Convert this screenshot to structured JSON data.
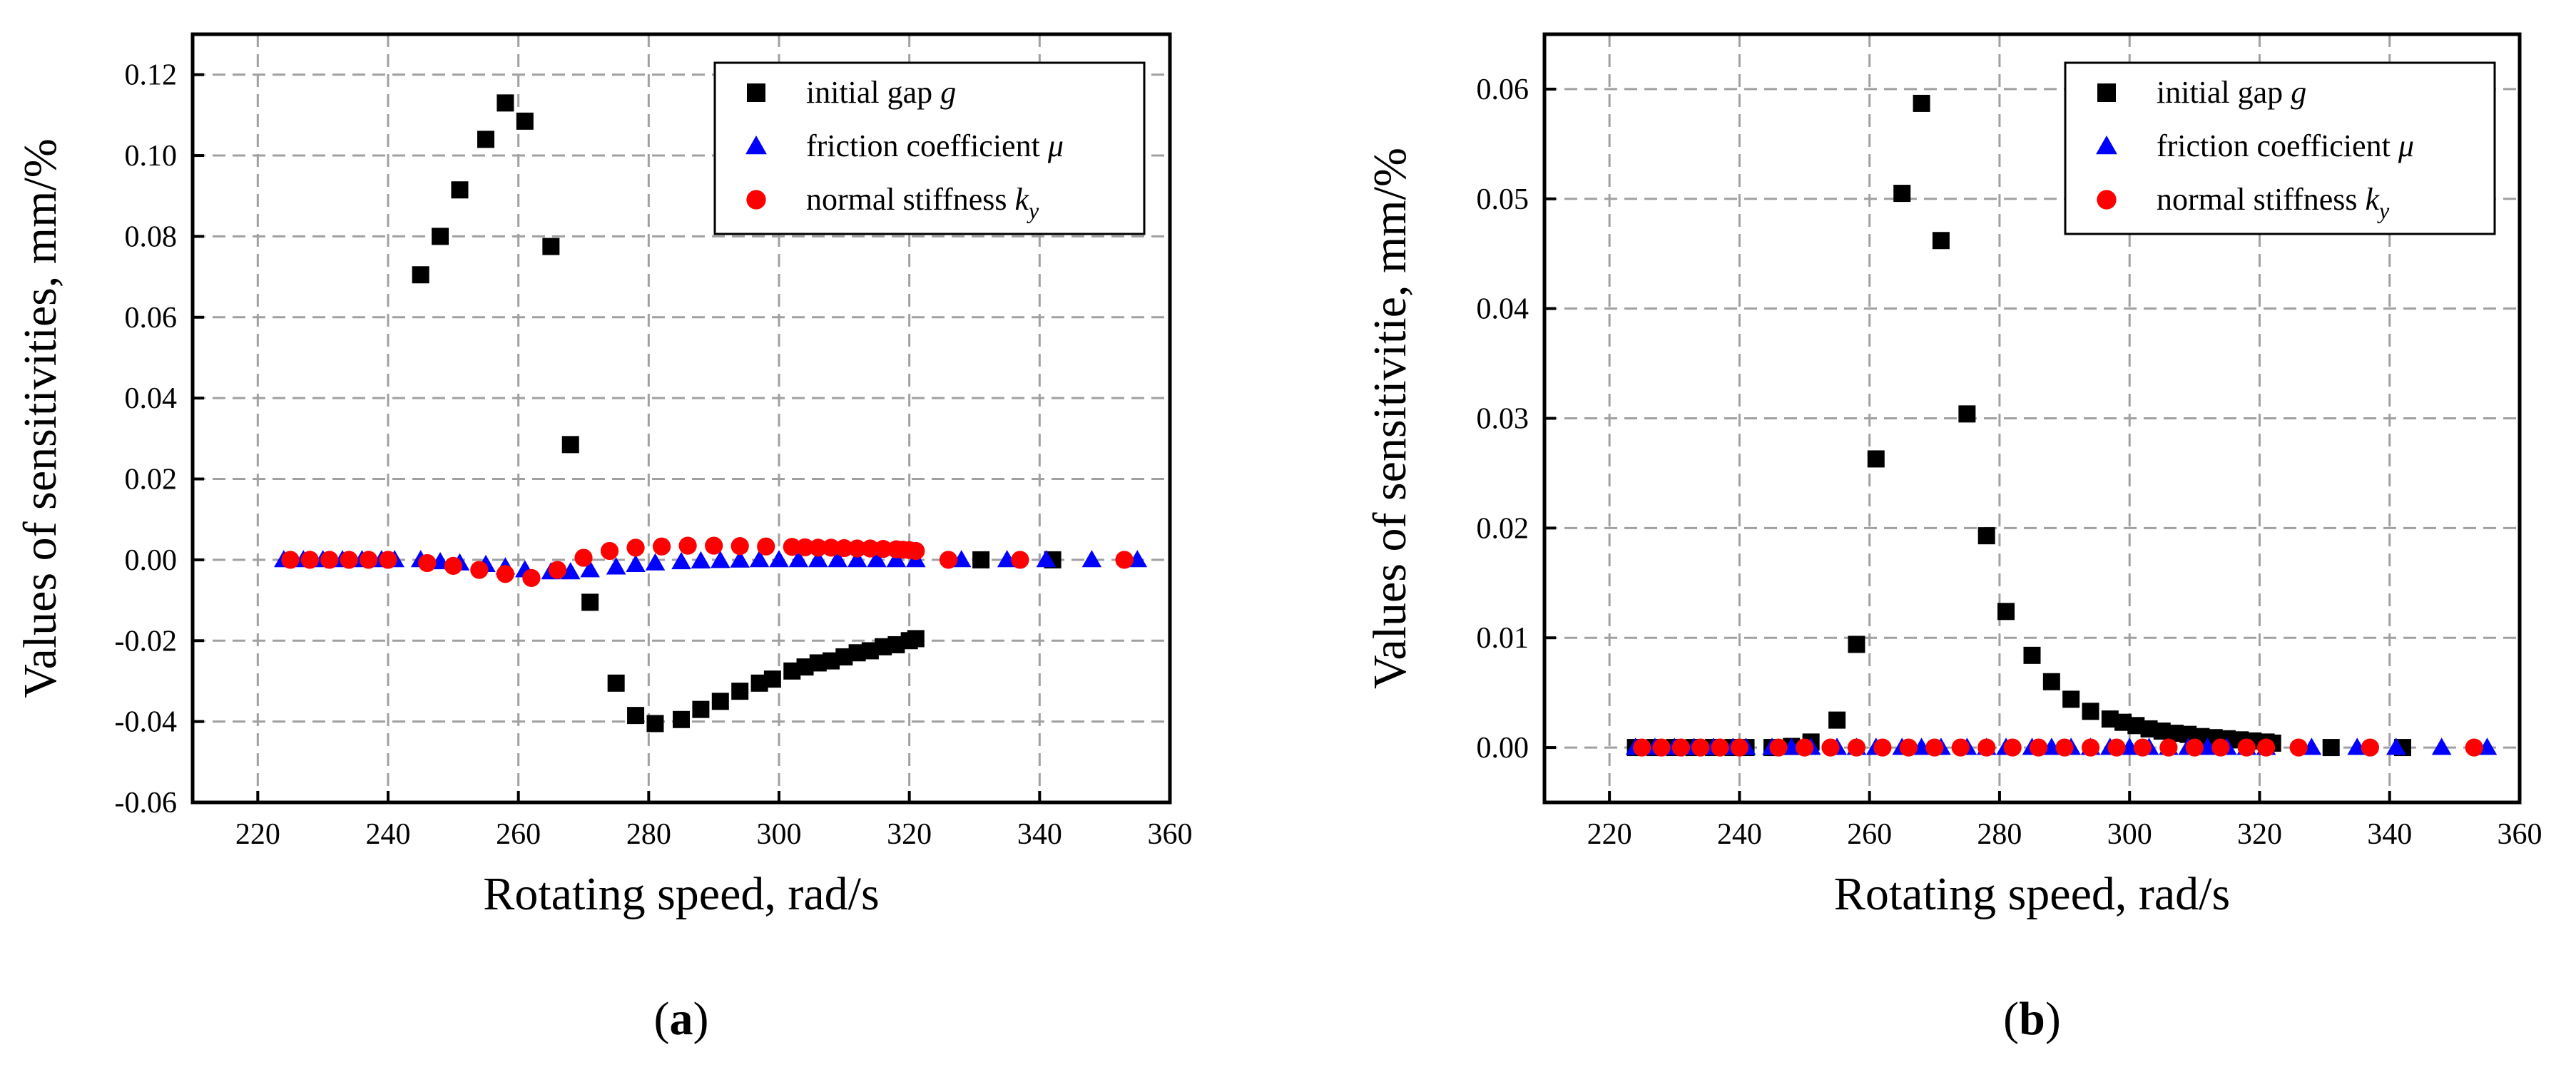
{
  "chart_data": [
    {
      "type": "scatter",
      "panel_label": "a",
      "xlabel": "Rotating speed, rad/s",
      "ylabel": "Values of sensitivities, mm/%",
      "xlim": [
        210,
        360
      ],
      "ylim": [
        -0.06,
        0.13
      ],
      "xticks": [
        "220",
        "240",
        "260",
        "280",
        "300",
        "320",
        "340",
        "360"
      ],
      "yticks": [
        "-0.06",
        "-0.04",
        "-0.02",
        "0.00",
        "0.02",
        "0.04",
        "0.06",
        "0.08",
        "0.10",
        "0.12"
      ],
      "grid": true,
      "legend_position": "top-right",
      "series": [
        {
          "name": "initial gap g",
          "label_text": "initial gap ",
          "label_italic": "g",
          "label_sub": "",
          "marker": "square",
          "color": "#000000",
          "x": [
            245,
            248,
            251,
            255,
            258,
            261,
            265,
            268,
            271,
            275,
            278,
            281,
            285,
            288,
            291,
            294,
            297,
            299,
            302,
            304,
            306,
            308,
            310,
            312,
            314,
            316,
            318,
            320,
            321,
            331,
            342
          ],
          "y": [
            0.0705,
            0.08,
            0.0915,
            0.104,
            0.113,
            0.1085,
            0.0775,
            0.0285,
            -0.0105,
            -0.0305,
            -0.0385,
            -0.0405,
            -0.0395,
            -0.037,
            -0.035,
            -0.0325,
            -0.0305,
            -0.0295,
            -0.0275,
            -0.0265,
            -0.0255,
            -0.025,
            -0.024,
            -0.023,
            -0.0225,
            -0.0215,
            -0.021,
            -0.02,
            -0.0195,
            0.0,
            0.0
          ]
        },
        {
          "name": "friction coefficient μ",
          "label_text": "friction coefficient ",
          "label_italic": "μ",
          "label_sub": "",
          "marker": "triangle",
          "color": "#0000ff",
          "x": [
            224,
            227,
            230,
            233,
            236,
            239,
            241,
            245,
            248,
            251,
            255,
            258,
            261,
            265,
            268,
            271,
            275,
            278,
            281,
            285,
            288,
            291,
            294,
            297,
            300,
            303,
            306,
            309,
            312,
            315,
            318,
            321,
            328,
            335,
            341,
            348,
            355
          ],
          "y": [
            0,
            0,
            0,
            0,
            0,
            0,
            0,
            0,
            -0.0005,
            -0.0008,
            -0.0012,
            -0.0018,
            -0.0025,
            -0.003,
            -0.003,
            -0.0025,
            -0.0018,
            -0.0012,
            -0.0008,
            -0.0005,
            -0.0003,
            -0.0002,
            -0.0001,
            0,
            0,
            0,
            0,
            0,
            0,
            0,
            0,
            0,
            0,
            0,
            0,
            0,
            0
          ]
        },
        {
          "name": "normal stiffness k_y",
          "label_text": "normal stiffness ",
          "label_italic": "k",
          "label_sub": "y",
          "marker": "circle",
          "color": "#ff0000",
          "x": [
            225,
            228,
            231,
            234,
            237,
            240,
            246,
            250,
            254,
            258,
            262,
            266,
            270,
            274,
            278,
            282,
            286,
            290,
            294,
            298,
            302,
            304,
            306,
            308,
            310,
            312,
            314,
            316,
            318,
            319,
            320,
            321,
            326,
            337,
            353
          ],
          "y": [
            0,
            0,
            0,
            0,
            0,
            0,
            -0.0008,
            -0.0015,
            -0.0025,
            -0.0035,
            -0.0045,
            -0.0025,
            0.0005,
            0.0022,
            0.003,
            0.0033,
            0.0035,
            0.0035,
            0.0034,
            0.0033,
            0.0032,
            0.0031,
            0.003,
            0.003,
            0.0029,
            0.0028,
            0.0028,
            0.0027,
            0.0026,
            0.0025,
            0.0024,
            0.0022,
            0,
            0,
            0
          ]
        }
      ]
    },
    {
      "type": "scatter",
      "panel_label": "b",
      "xlabel": "Rotating speed, rad/s",
      "ylabel": "Values of sensitivitie, mm/%",
      "xlim": [
        210,
        360
      ],
      "ylim": [
        -0.005,
        0.065
      ],
      "xticks": [
        "220",
        "240",
        "260",
        "280",
        "300",
        "320",
        "340",
        "360"
      ],
      "yticks": [
        "0.00",
        "0.01",
        "0.02",
        "0.03",
        "0.04",
        "0.05",
        "0.06"
      ],
      "grid": true,
      "legend_position": "top-right",
      "series": [
        {
          "name": "initial gap g",
          "label_text": "initial gap ",
          "label_italic": "g",
          "label_sub": "",
          "marker": "square",
          "color": "#000000",
          "x": [
            224,
            227,
            230,
            233,
            236,
            239,
            241,
            245,
            248,
            251,
            255,
            258,
            261,
            265,
            268,
            271,
            275,
            278,
            281,
            285,
            288,
            291,
            294,
            297,
            299,
            301,
            303,
            305,
            307,
            309,
            311,
            313,
            315,
            317,
            319,
            321,
            322,
            331,
            342
          ],
          "y": [
            0,
            0,
            0,
            0,
            0,
            0,
            0,
            0,
            0.0001,
            0.0005,
            0.0025,
            0.0094,
            0.0263,
            0.0505,
            0.0587,
            0.0462,
            0.0304,
            0.0193,
            0.0124,
            0.0084,
            0.006,
            0.0044,
            0.0033,
            0.0026,
            0.0023,
            0.002,
            0.0017,
            0.0015,
            0.0013,
            0.0012,
            0.001,
            0.0009,
            0.0008,
            0.0007,
            0.0006,
            0.0005,
            0.0004,
            0.0,
            0.0
          ]
        },
        {
          "name": "friction coefficient μ",
          "label_text": "friction coefficient ",
          "label_italic": "μ",
          "label_sub": "",
          "marker": "triangle",
          "color": "#0000ff",
          "x": [
            224,
            227,
            230,
            233,
            236,
            239,
            241,
            245,
            248,
            251,
            255,
            258,
            261,
            265,
            268,
            271,
            275,
            278,
            281,
            285,
            288,
            291,
            294,
            297,
            300,
            303,
            306,
            309,
            312,
            315,
            318,
            321,
            328,
            335,
            341,
            348,
            355
          ],
          "y": [
            0,
            0,
            0,
            0,
            0,
            0,
            0,
            0,
            0,
            0,
            0,
            0,
            0,
            0,
            0,
            0,
            0,
            0,
            0,
            0,
            0,
            0,
            0,
            0,
            0,
            0,
            0,
            0,
            0,
            0,
            0,
            0,
            0,
            0,
            0,
            0,
            0
          ]
        },
        {
          "name": "normal stiffness k_y",
          "label_text": "normal stiffness ",
          "label_italic": "k",
          "label_sub": "y",
          "marker": "circle",
          "color": "#ff0000",
          "x": [
            225,
            228,
            231,
            234,
            237,
            240,
            246,
            250,
            254,
            258,
            262,
            266,
            270,
            274,
            278,
            282,
            286,
            290,
            294,
            298,
            302,
            306,
            310,
            314,
            318,
            321,
            326,
            337,
            353
          ],
          "y": [
            0,
            0,
            0,
            0,
            0,
            0,
            0,
            0,
            0,
            0,
            0,
            0,
            0,
            0,
            0,
            0,
            0,
            0,
            0,
            0,
            0,
            0,
            0,
            0,
            0,
            0,
            0,
            0,
            0
          ]
        }
      ]
    }
  ]
}
